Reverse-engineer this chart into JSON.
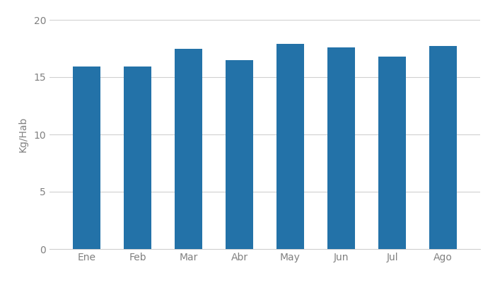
{
  "categories": [
    "Ene",
    "Feb",
    "Mar",
    "Abr",
    "May",
    "Jun",
    "Jul",
    "Ago"
  ],
  "values": [
    15.9,
    15.9,
    17.5,
    16.5,
    17.9,
    17.6,
    16.8,
    17.7
  ],
  "bar_color": "#2372a8",
  "ylabel": "Kg/Hab",
  "ylim": [
    0,
    20
  ],
  "yticks": [
    0,
    5,
    10,
    15,
    20
  ],
  "background_color": "#ffffff",
  "grid_color": "#d0d0d0",
  "tick_label_color": "#808080",
  "bar_width": 0.55
}
